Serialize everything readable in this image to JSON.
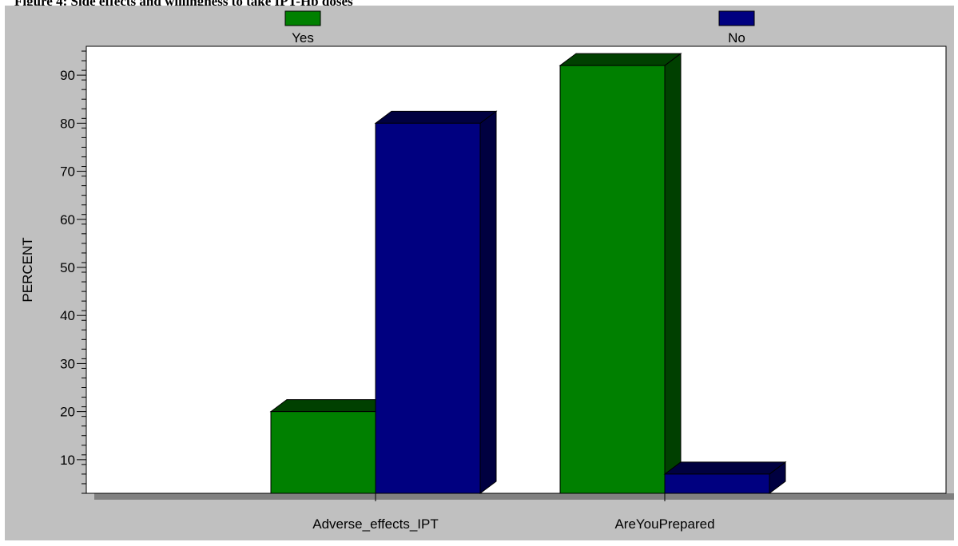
{
  "figure_caption": "Figure 4: Side effects and willingness to take IPT-Hb doses",
  "chart_data": {
    "type": "bar",
    "categories": [
      "Adverse_effects_IPT",
      "AreYouPrepared"
    ],
    "series": [
      {
        "name": "Yes",
        "values": [
          20,
          92
        ]
      },
      {
        "name": "No",
        "values": [
          80,
          7
        ]
      }
    ],
    "xlabel": "",
    "ylabel": "PERCENT",
    "ylim": [
      3,
      96
    ],
    "yticks": [
      10,
      20,
      30,
      40,
      50,
      60,
      70,
      80,
      90
    ],
    "legend": "top",
    "grid": false,
    "colors": {
      "Yes": "#008000",
      "Yes_side": "#004000",
      "No": "#000080",
      "No_side": "#000040",
      "panel_bg": "#c0c0c0",
      "plot_bg": "#ffffff"
    }
  }
}
